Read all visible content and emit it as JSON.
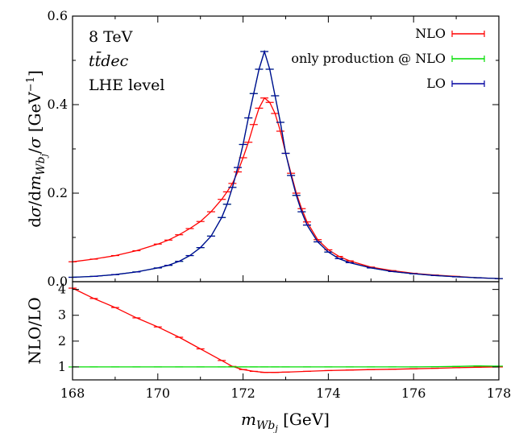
{
  "chart_data": [
    {
      "type": "line",
      "panel": "main",
      "ylabel": "dσ/dm_{Wb_j}/σ [GeV^{-1}]",
      "xlim": [
        168,
        178
      ],
      "ylim": [
        0,
        0.6
      ],
      "yticks": [
        "0.0",
        "0.2",
        "0.4",
        "0.6"
      ],
      "annotations": [
        "8 TeV",
        "tt̄dec",
        "LHE level"
      ],
      "legend_position": "top-right",
      "legend": [
        {
          "label": "NLO",
          "color": "#ff0000"
        },
        {
          "label": "only production @ NLO",
          "color": "#00dd00"
        },
        {
          "label": "LO",
          "color": "#0000a0"
        }
      ],
      "x": [
        168.0,
        168.5,
        169.0,
        169.5,
        170.0,
        170.25,
        170.5,
        170.75,
        171.0,
        171.25,
        171.5,
        171.625,
        171.75,
        171.875,
        172.0,
        172.125,
        172.25,
        172.375,
        172.5,
        172.625,
        172.75,
        172.875,
        173.0,
        173.125,
        173.25,
        173.375,
        173.5,
        173.75,
        174.0,
        174.25,
        174.5,
        175.0,
        175.5,
        176.0,
        176.5,
        177.0,
        177.5,
        178.0
      ],
      "series": [
        {
          "name": "NLO",
          "color": "#ff0000",
          "values": [
            0.045,
            0.051,
            0.059,
            0.07,
            0.085,
            0.094,
            0.106,
            0.12,
            0.136,
            0.158,
            0.186,
            0.203,
            0.222,
            0.248,
            0.28,
            0.315,
            0.355,
            0.392,
            0.415,
            0.405,
            0.38,
            0.34,
            0.29,
            0.245,
            0.2,
            0.165,
            0.135,
            0.095,
            0.072,
            0.057,
            0.047,
            0.033,
            0.025,
            0.019,
            0.015,
            0.012,
            0.009,
            0.007
          ]
        },
        {
          "name": "only production @ NLO",
          "color": "#00dd00",
          "values": [
            0.01,
            0.012,
            0.016,
            0.022,
            0.031,
            0.037,
            0.046,
            0.059,
            0.077,
            0.103,
            0.145,
            0.175,
            0.213,
            0.258,
            0.31,
            0.37,
            0.425,
            0.48,
            0.52,
            0.48,
            0.42,
            0.36,
            0.29,
            0.24,
            0.195,
            0.158,
            0.128,
            0.09,
            0.067,
            0.052,
            0.043,
            0.031,
            0.023,
            0.018,
            0.014,
            0.011,
            0.009,
            0.007
          ]
        },
        {
          "name": "LO",
          "color": "#0000a0",
          "values": [
            0.01,
            0.012,
            0.016,
            0.022,
            0.031,
            0.037,
            0.046,
            0.059,
            0.077,
            0.103,
            0.145,
            0.175,
            0.213,
            0.258,
            0.31,
            0.37,
            0.425,
            0.48,
            0.52,
            0.48,
            0.42,
            0.36,
            0.29,
            0.24,
            0.195,
            0.158,
            0.128,
            0.09,
            0.067,
            0.052,
            0.043,
            0.031,
            0.023,
            0.018,
            0.014,
            0.011,
            0.009,
            0.007
          ]
        }
      ]
    },
    {
      "type": "line",
      "panel": "ratio",
      "ylabel": "NLO/LO",
      "xlabel": "m_{Wb_j} [GeV]",
      "xlim": [
        168,
        178
      ],
      "ylim": [
        0.5,
        4.3
      ],
      "xticks": [
        "168",
        "170",
        "172",
        "174",
        "176",
        "178"
      ],
      "yticks": [
        "1",
        "2",
        "3",
        "4"
      ],
      "x": [
        168.0,
        168.5,
        169.0,
        169.5,
        170.0,
        170.5,
        171.0,
        171.5,
        171.75,
        172.0,
        172.25,
        172.5,
        172.75,
        173.0,
        173.5,
        174.0,
        174.5,
        175.0,
        175.5,
        176.0,
        176.5,
        177.0,
        177.5,
        178.0
      ],
      "series": [
        {
          "name": "NLO/LO",
          "color": "#ff0000",
          "values": [
            4.05,
            3.65,
            3.3,
            2.9,
            2.55,
            2.15,
            1.7,
            1.25,
            1.02,
            0.9,
            0.83,
            0.79,
            0.79,
            0.8,
            0.83,
            0.86,
            0.88,
            0.9,
            0.91,
            0.93,
            0.95,
            0.97,
            0.99,
            1.0
          ]
        },
        {
          "name": "only production @ NLO / LO",
          "color": "#00dd00",
          "values": [
            1.0,
            1.0,
            1.0,
            1.0,
            1.0,
            1.0,
            1.0,
            1.0,
            1.0,
            1.0,
            1.0,
            1.0,
            1.0,
            1.0,
            1.0,
            1.0,
            1.0,
            1.0,
            1.0,
            1.0,
            1.01,
            1.02,
            1.04,
            1.03
          ]
        }
      ]
    }
  ]
}
